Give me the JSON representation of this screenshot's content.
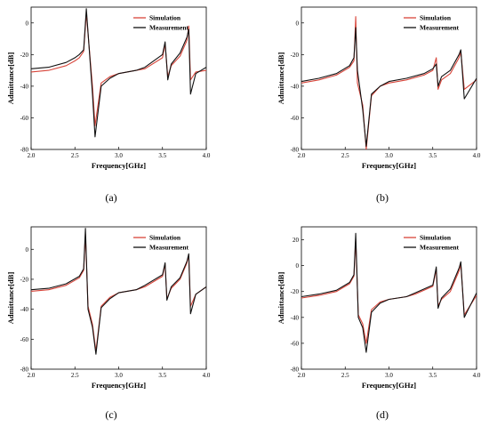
{
  "colors": {
    "simulation": "#d8453a",
    "measurement": "#111111",
    "axis": "#000000"
  },
  "chart_data": [
    {
      "type": "line",
      "panel": "(a)",
      "xlabel": "Frequency[GHz]",
      "ylabel": "Admittance[dB]",
      "xlim": [
        2.0,
        4.0
      ],
      "ylim": [
        -80,
        10
      ],
      "xticks": [
        "2.0",
        "2.5",
        "3.0",
        "3.5",
        "4.0"
      ],
      "yticks": [
        "-80",
        "-60",
        "-40",
        "-20",
        "0"
      ],
      "legend": [
        "Simulation",
        "Measurement"
      ],
      "series": [
        {
          "name": "Simulation",
          "x": [
            2.0,
            2.2,
            2.4,
            2.5,
            2.55,
            2.6,
            2.63,
            2.7,
            2.73,
            2.8,
            2.9,
            3.0,
            3.2,
            3.3,
            3.5,
            3.53,
            3.56,
            3.6,
            3.7,
            3.78,
            3.8,
            3.82,
            3.88,
            4.0
          ],
          "y": [
            -31,
            -30,
            -27,
            -24,
            -22,
            -18,
            6,
            -40,
            -65,
            -38,
            -34,
            -32,
            -30,
            -29,
            -22,
            -13,
            -34,
            -27,
            -21,
            -11,
            -2,
            -36,
            -31,
            -30
          ]
        },
        {
          "name": "Measurement",
          "x": [
            2.0,
            2.2,
            2.4,
            2.5,
            2.55,
            2.6,
            2.63,
            2.7,
            2.73,
            2.8,
            2.9,
            3.0,
            3.2,
            3.3,
            3.5,
            3.53,
            3.56,
            3.6,
            3.7,
            3.78,
            3.8,
            3.82,
            3.88,
            4.0
          ],
          "y": [
            -29,
            -28,
            -25,
            -22,
            -20,
            -17,
            9,
            -45,
            -72,
            -40,
            -35,
            -32,
            -30,
            -28,
            -20,
            -12,
            -36,
            -26,
            -19,
            -9,
            -4,
            -45,
            -32,
            -28
          ]
        }
      ]
    },
    {
      "type": "line",
      "panel": "(b)",
      "xlabel": "Frequency[GHz]",
      "ylabel": "Admittance[dB]",
      "xlim": [
        2.0,
        4.0
      ],
      "ylim": [
        -80,
        10
      ],
      "xticks": [
        "2.0",
        "2.5",
        "3.0",
        "3.5",
        "4.0"
      ],
      "yticks": [
        "-80",
        "-60",
        "-40",
        "-20",
        "0"
      ],
      "legend": [
        "Simulation",
        "Measurement"
      ],
      "series": [
        {
          "name": "Simulation",
          "x": [
            2.0,
            2.2,
            2.4,
            2.55,
            2.6,
            2.62,
            2.64,
            2.7,
            2.74,
            2.8,
            2.9,
            3.0,
            3.2,
            3.4,
            3.5,
            3.54,
            3.56,
            3.6,
            3.7,
            3.8,
            3.82,
            3.86,
            4.0
          ],
          "y": [
            -38,
            -36,
            -33,
            -28,
            -24,
            4,
            -38,
            -52,
            -80,
            -46,
            -40,
            -38,
            -36,
            -33,
            -30,
            -22,
            -42,
            -36,
            -32,
            -22,
            -18,
            -42,
            -36
          ]
        },
        {
          "name": "Measurement",
          "x": [
            2.0,
            2.2,
            2.4,
            2.55,
            2.6,
            2.62,
            2.64,
            2.7,
            2.74,
            2.8,
            2.9,
            3.0,
            3.2,
            3.4,
            3.5,
            3.54,
            3.56,
            3.6,
            3.7,
            3.8,
            3.82,
            3.86,
            4.0
          ],
          "y": [
            -37,
            -35,
            -32,
            -27,
            -22,
            -3,
            -30,
            -55,
            -78,
            -45,
            -40,
            -37,
            -35,
            -32,
            -29,
            -26,
            -40,
            -34,
            -30,
            -20,
            -17,
            -48,
            -35
          ]
        }
      ]
    },
    {
      "type": "line",
      "panel": "(c)",
      "xlabel": "Frequency[GHz]",
      "ylabel": "Admittance[dB]",
      "xlim": [
        2.0,
        4.0
      ],
      "ylim": [
        -80,
        15
      ],
      "xticks": [
        "2.0",
        "2.5",
        "3.0",
        "3.5",
        "4.0"
      ],
      "yticks": [
        "-80",
        "-60",
        "-40",
        "-20",
        "0"
      ],
      "legend": [
        "Simulation",
        "Measurement"
      ],
      "series": [
        {
          "name": "Simulation",
          "x": [
            2.0,
            2.2,
            2.4,
            2.55,
            2.6,
            2.62,
            2.65,
            2.7,
            2.74,
            2.8,
            2.9,
            3.0,
            3.2,
            3.3,
            3.5,
            3.53,
            3.55,
            3.6,
            3.7,
            3.78,
            3.8,
            3.82,
            3.88,
            4.0
          ],
          "y": [
            -28,
            -27,
            -24,
            -19,
            -14,
            10,
            -38,
            -50,
            -68,
            -38,
            -32,
            -29,
            -27,
            -25,
            -18,
            -10,
            -33,
            -26,
            -20,
            -9,
            -4,
            -38,
            -30,
            -25
          ]
        },
        {
          "name": "Measurement",
          "x": [
            2.0,
            2.2,
            2.4,
            2.55,
            2.6,
            2.62,
            2.65,
            2.7,
            2.74,
            2.8,
            2.9,
            3.0,
            3.2,
            3.3,
            3.5,
            3.53,
            3.55,
            3.6,
            3.7,
            3.78,
            3.8,
            3.82,
            3.88,
            4.0
          ],
          "y": [
            -27,
            -26,
            -23,
            -18,
            -13,
            14,
            -40,
            -52,
            -70,
            -39,
            -33,
            -29,
            -27,
            -24,
            -17,
            -9,
            -34,
            -25,
            -19,
            -8,
            -3,
            -43,
            -30,
            -25
          ]
        }
      ]
    },
    {
      "type": "line",
      "panel": "(d)",
      "xlabel": "Frequency[GHz]",
      "ylabel": "Admittance[dB]",
      "xlim": [
        2.0,
        4.0
      ],
      "ylim": [
        -80,
        30
      ],
      "xticks": [
        "2.0",
        "2.5",
        "3.0",
        "3.5",
        "4.0"
      ],
      "yticks": [
        "-80",
        "-60",
        "-40",
        "-20",
        "0",
        "20"
      ],
      "legend": [
        "Simulation",
        "Measurement"
      ],
      "series": [
        {
          "name": "Simulation",
          "x": [
            2.0,
            2.2,
            2.4,
            2.55,
            2.6,
            2.62,
            2.65,
            2.7,
            2.74,
            2.8,
            2.9,
            3.0,
            3.2,
            3.3,
            3.5,
            3.54,
            3.56,
            3.6,
            3.7,
            3.8,
            3.82,
            3.86,
            4.0
          ],
          "y": [
            -25,
            -23,
            -20,
            -14,
            -8,
            20,
            -38,
            -45,
            -60,
            -34,
            -28,
            -26,
            -24,
            -22,
            -16,
            -3,
            -31,
            -26,
            -20,
            -4,
            1,
            -38,
            -23
          ]
        },
        {
          "name": "Measurement",
          "x": [
            2.0,
            2.2,
            2.4,
            2.55,
            2.6,
            2.62,
            2.65,
            2.7,
            2.74,
            2.8,
            2.9,
            3.0,
            3.2,
            3.3,
            3.5,
            3.54,
            3.56,
            3.6,
            3.7,
            3.8,
            3.82,
            3.86,
            4.0
          ],
          "y": [
            -24,
            -22,
            -19,
            -13,
            -7,
            25,
            -40,
            -48,
            -67,
            -36,
            -29,
            -26,
            -24,
            -21,
            -15,
            -1,
            -33,
            -25,
            -18,
            -2,
            3,
            -40,
            -21
          ]
        }
      ]
    }
  ]
}
